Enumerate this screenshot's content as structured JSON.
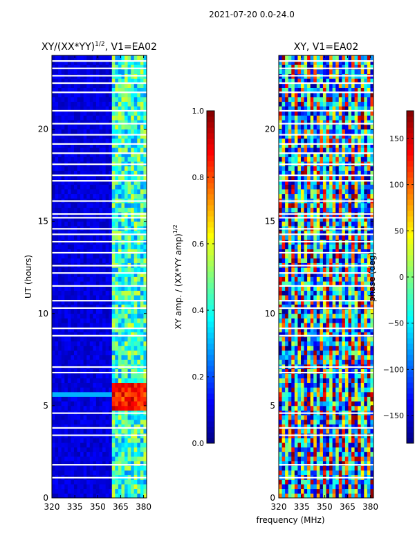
{
  "figure": {
    "suptitle": "2021-07-20 0.0-24.0",
    "xlabel": "frequency (MHz)"
  },
  "chart_data": [
    {
      "type": "heatmap",
      "title": "XY/(XX*YY)",
      "title_exponent": "1/2",
      "title_suffix": ", V1=EA02",
      "ylabel": "UT (hours)",
      "xlabel": "frequency (MHz)",
      "xlim": [
        320,
        382
      ],
      "ylim": [
        0,
        24
      ],
      "xticks": [
        "320",
        "335",
        "350",
        "365",
        "380"
      ],
      "yticks": [
        "0",
        "5",
        "10",
        "15",
        "20"
      ],
      "colorbar": {
        "label": "XY amp. / (XX*YY amp)",
        "label_exponent": "1/2",
        "vmin": 0.0,
        "vmax": 1.0,
        "ticks": [
          "0.0",
          "0.2",
          "0.4",
          "0.6",
          "0.8",
          "1.0"
        ],
        "colormap": "jet"
      }
    },
    {
      "type": "heatmap",
      "title": "XY, V1=EA02",
      "ylabel": "",
      "xlabel": "frequency (MHz)",
      "xlim": [
        320,
        382
      ],
      "ylim": [
        0,
        24
      ],
      "xticks": [
        "320",
        "335",
        "350",
        "365",
        "380"
      ],
      "yticks": [
        "0",
        "5",
        "10",
        "15",
        "20"
      ],
      "colorbar": {
        "label": "phase (deg)",
        "vmin": -180,
        "vmax": 180,
        "ticks": [
          "−150",
          "−100",
          "−50",
          "0",
          "50",
          "100",
          "150"
        ],
        "colormap": "jet"
      }
    }
  ],
  "colors": {
    "jet": [
      "#00007f",
      "#0000ff",
      "#007fff",
      "#00ffff",
      "#7fff7f",
      "#ffff00",
      "#ff7f00",
      "#ff0000",
      "#7f0000"
    ]
  },
  "flagged_gaps_ut_hours": [
    1.1,
    1.8,
    3.4,
    3.8,
    4.6,
    6.8,
    7.1,
    8.8,
    9.2,
    10.3,
    10.7,
    11.5,
    12.2,
    12.6,
    13.3,
    13.9,
    14.3,
    14.6,
    15.2,
    15.4,
    16.1,
    17.2,
    17.5,
    18.1,
    18.7,
    19.2,
    19.7,
    20.3,
    21.0,
    22.0,
    22.5,
    22.9,
    23.3,
    23.7
  ]
}
